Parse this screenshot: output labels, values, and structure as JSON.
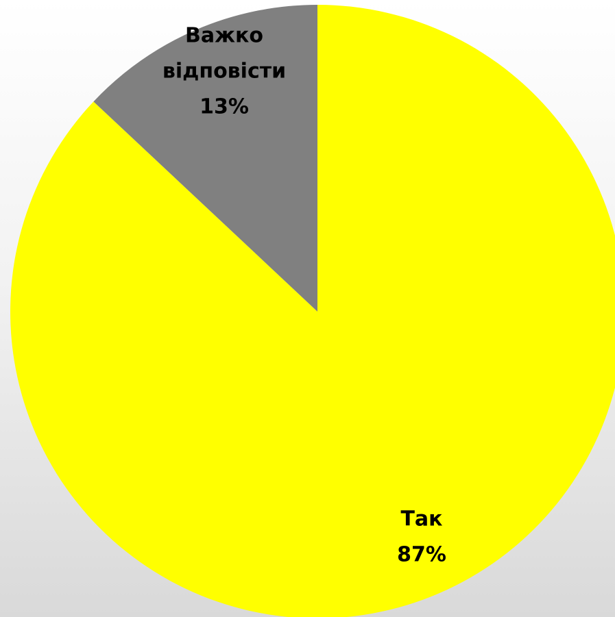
{
  "chart_data": {
    "type": "pie",
    "title": "",
    "start": "12 o'clock",
    "direction": "clockwise",
    "slices": [
      {
        "category": "Так",
        "percent_label": "87%",
        "value": 87,
        "color": "#ffff00"
      },
      {
        "category": "Важко відповісти",
        "category_lines": [
          "Важко",
          "відповісти"
        ],
        "percent_label": "13%",
        "value": 13,
        "color": "#808080"
      }
    ]
  }
}
